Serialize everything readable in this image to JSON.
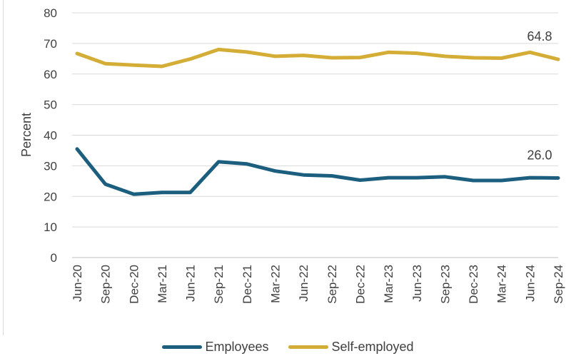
{
  "chart_data": {
    "type": "line",
    "title": "",
    "xlabel": "",
    "ylabel": "Percent",
    "ylim": [
      0,
      80
    ],
    "yticks": [
      0,
      10,
      20,
      30,
      40,
      50,
      60,
      70,
      80
    ],
    "grid": true,
    "legend_position": "bottom",
    "categories": [
      "Jun-20",
      "Sep-20",
      "Dec-20",
      "Mar-21",
      "Jun-21",
      "Sep-21",
      "Dec-21",
      "Mar-22",
      "Jun-22",
      "Sep-22",
      "Dec-22",
      "Mar-23",
      "Jun-23",
      "Sep-23",
      "Dec-23",
      "Mar-24",
      "Jun-24",
      "Sep-24"
    ],
    "series": [
      {
        "name": "Employees",
        "color": "#1b5e7e",
        "values": [
          35.5,
          24.0,
          20.7,
          21.3,
          21.3,
          31.3,
          30.6,
          28.3,
          27.0,
          26.7,
          25.3,
          26.1,
          26.1,
          26.4,
          25.2,
          25.2,
          26.1,
          26.0
        ],
        "end_label": "26.0"
      },
      {
        "name": "Self-employed",
        "color": "#d4ad36",
        "values": [
          66.7,
          63.4,
          62.9,
          62.5,
          64.9,
          68.0,
          67.2,
          65.8,
          66.1,
          65.3,
          65.4,
          67.1,
          66.8,
          65.8,
          65.3,
          65.2,
          67.1,
          64.8
        ],
        "end_label": "64.8"
      }
    ]
  }
}
